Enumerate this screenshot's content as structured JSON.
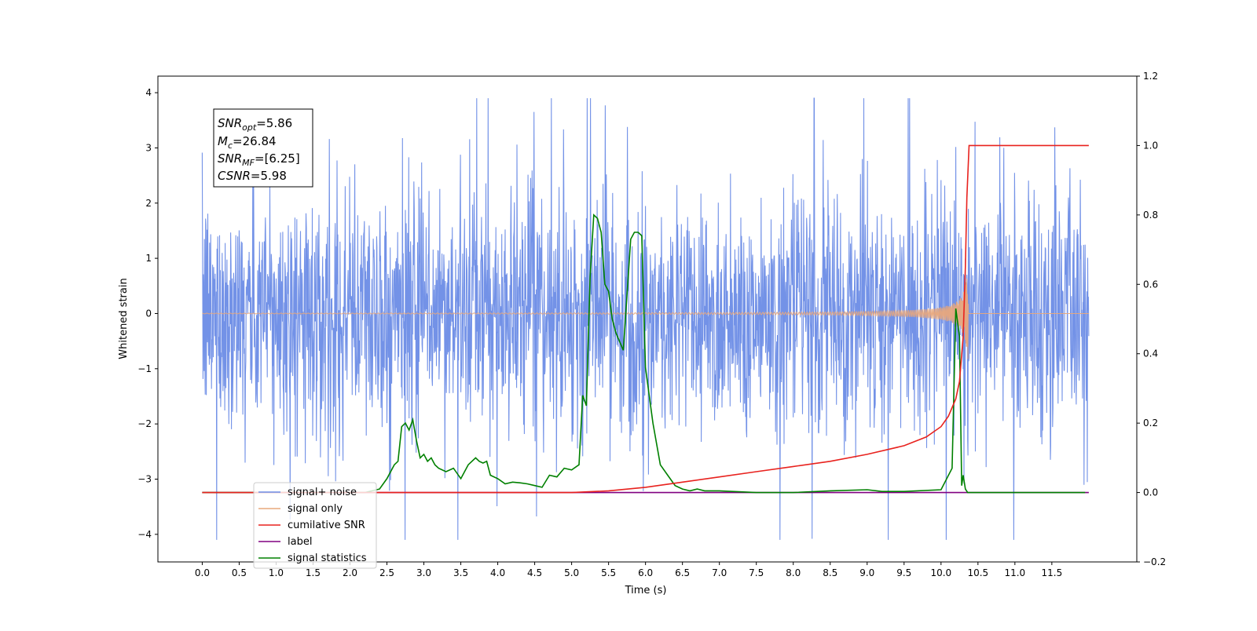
{
  "chart_data": {
    "type": "line",
    "xlabel": "Time (s)",
    "ylabel": "Whitened strain",
    "xlim": [
      -0.6,
      12.65
    ],
    "ylim": [
      -4.5,
      4.3
    ],
    "y2lim": [
      -0.2,
      1.2
    ],
    "x_ticks": [
      "0.0",
      "0.5",
      "1.0",
      "1.5",
      "2.0",
      "2.5",
      "3.0",
      "3.5",
      "4.0",
      "4.5",
      "5.0",
      "5.5",
      "6.0",
      "6.5",
      "7.0",
      "7.5",
      "8.0",
      "8.5",
      "9.0",
      "9.5",
      "10.0",
      "10.5",
      "11.0",
      "11.5"
    ],
    "y_ticks": [
      "4",
      "3",
      "2",
      "1",
      "0",
      "−1",
      "−2",
      "−3",
      "−4"
    ],
    "y2_ticks": [
      "1.2",
      "1.0",
      "0.8",
      "0.6",
      "0.4",
      "0.2",
      "0.0",
      "−0.2"
    ],
    "legend_position": "lower-left",
    "annotation": {
      "snr_opt": {
        "base": "SNR",
        "sub": "opt",
        "value": "=5.86"
      },
      "mc": {
        "base": "M",
        "sub": "c",
        "value": "=26.84"
      },
      "snr_mf": {
        "base": "SNR",
        "sub": "MF",
        "value": "=[6.25]"
      },
      "csnr": {
        "base": "CSNR",
        "sub": "",
        "value": "=5.98"
      }
    },
    "series": [
      {
        "name": "signal+ noise",
        "color": "#6c8ce6",
        "axis": "left",
        "description": "whitened noise plus signal, roughly within ±3.5",
        "x_range": [
          0.0,
          12.0
        ],
        "amplitude_envelope": 3.5
      },
      {
        "name": "signal only",
        "color": "#e8a87c",
        "axis": "left",
        "description": "chirp signal, growing amplitude until merger",
        "merger_time": 10.37,
        "peak_amplitude": 0.95
      },
      {
        "name": "cumilative SNR",
        "color": "#e8221e",
        "axis": "right",
        "x": [
          0.0,
          5.0,
          5.5,
          6.0,
          6.5,
          7.0,
          7.5,
          8.0,
          8.5,
          9.0,
          9.5,
          9.8,
          10.0,
          10.1,
          10.2,
          10.25,
          10.3,
          10.33,
          10.35,
          10.38,
          11.0,
          12.0
        ],
        "values": [
          0.0,
          0.0,
          0.005,
          0.015,
          0.03,
          0.045,
          0.06,
          0.075,
          0.09,
          0.11,
          0.135,
          0.16,
          0.19,
          0.22,
          0.27,
          0.32,
          0.45,
          0.65,
          0.85,
          1.0,
          1.0,
          1.0
        ]
      },
      {
        "name": "label",
        "color": "#800080",
        "axis": "right",
        "x": [
          0.0,
          12.0
        ],
        "values": [
          0.0,
          0.0
        ]
      },
      {
        "name": "signal statistics",
        "color": "#008000",
        "axis": "right",
        "x": [
          0.0,
          2.2,
          2.4,
          2.5,
          2.6,
          2.65,
          2.7,
          2.75,
          2.8,
          2.85,
          2.9,
          2.95,
          3.0,
          3.05,
          3.1,
          3.15,
          3.2,
          3.3,
          3.4,
          3.5,
          3.6,
          3.7,
          3.75,
          3.8,
          3.85,
          3.9,
          4.0,
          4.1,
          4.2,
          4.3,
          4.4,
          4.5,
          4.6,
          4.7,
          4.8,
          4.9,
          5.0,
          5.1,
          5.15,
          5.2,
          5.25,
          5.3,
          5.35,
          5.4,
          5.45,
          5.5,
          5.55,
          5.6,
          5.7,
          5.8,
          5.85,
          5.9,
          5.95,
          6.0,
          6.1,
          6.2,
          6.3,
          6.4,
          6.5,
          6.6,
          6.7,
          6.8,
          7.0,
          7.5,
          8.0,
          8.5,
          9.0,
          9.2,
          9.5,
          10.0,
          10.15,
          10.2,
          10.25,
          10.28,
          10.3,
          10.33,
          10.36,
          10.4,
          10.5,
          11.0,
          11.95
        ],
        "values": [
          0.0,
          0.0,
          0.01,
          0.04,
          0.08,
          0.09,
          0.19,
          0.2,
          0.18,
          0.21,
          0.15,
          0.1,
          0.11,
          0.09,
          0.1,
          0.08,
          0.07,
          0.06,
          0.07,
          0.04,
          0.08,
          0.1,
          0.09,
          0.085,
          0.09,
          0.05,
          0.04,
          0.025,
          0.03,
          0.028,
          0.025,
          0.02,
          0.015,
          0.05,
          0.045,
          0.07,
          0.065,
          0.08,
          0.28,
          0.25,
          0.62,
          0.8,
          0.79,
          0.75,
          0.6,
          0.58,
          0.5,
          0.46,
          0.41,
          0.73,
          0.75,
          0.75,
          0.74,
          0.36,
          0.2,
          0.08,
          0.05,
          0.02,
          0.01,
          0.005,
          0.01,
          0.005,
          0.005,
          0.0,
          0.0,
          0.005,
          0.008,
          0.003,
          0.003,
          0.008,
          0.07,
          0.53,
          0.45,
          0.02,
          0.05,
          0.01,
          0.0,
          0.0,
          0.0,
          0.0,
          0.0
        ]
      }
    ]
  }
}
